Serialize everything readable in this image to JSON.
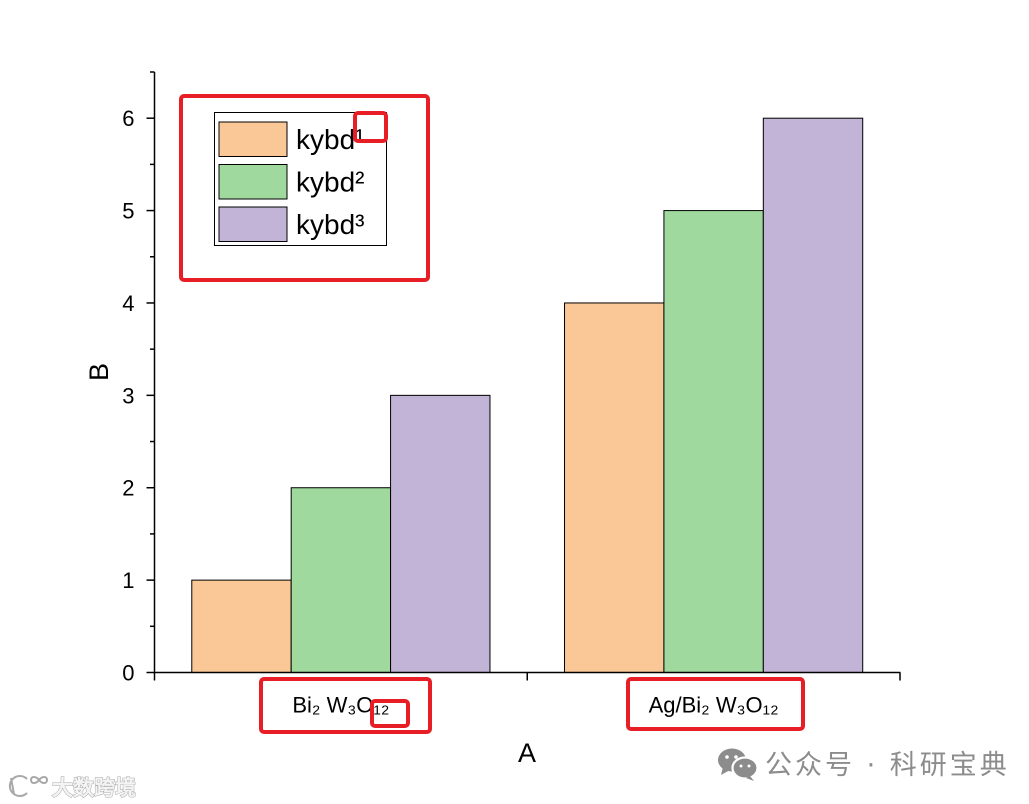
{
  "chart_data": {
    "type": "bar",
    "categories": [
      "Bi₂ W₃O₁₂",
      "Ag/Bi₂ W₃O₁₂"
    ],
    "series": [
      {
        "name": "kybd¹",
        "values": [
          1,
          4
        ],
        "color": "#FAC896"
      },
      {
        "name": "kybd²",
        "values": [
          2,
          5
        ],
        "color": "#9FD99E"
      },
      {
        "name": "kybd³",
        "values": [
          3,
          6
        ],
        "color": "#C2B4D6"
      }
    ],
    "xlabel": "A",
    "ylabel": "B",
    "ylim": [
      0,
      6.5
    ],
    "yticks": [
      0,
      1,
      2,
      3,
      4,
      5,
      6
    ],
    "grid": false,
    "legend": "top-left"
  },
  "annotations": {
    "color": "#E81E26"
  },
  "watermarks": {
    "account": "公众号 · 科研宝典",
    "brand": "大数跨境",
    "color": "#8C8C8C",
    "icons": {
      "account": "wechat-icon",
      "brand": "brand-logo-icon"
    }
  }
}
